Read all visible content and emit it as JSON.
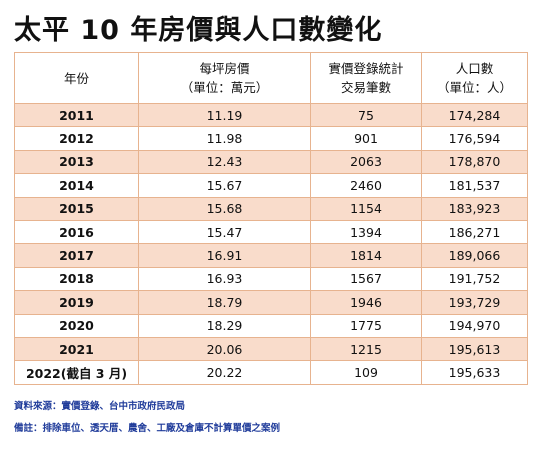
{
  "title": "太平 10 年房價與人口數變化",
  "headers": {
    "year": "年份",
    "price_line1": "每坪房價",
    "price_line2": "（單位：萬元）",
    "tx_line1": "實價登錄統計",
    "tx_line2": "交易筆數",
    "pop_line1": "人口數",
    "pop_line2": "（單位：人）"
  },
  "rows": [
    {
      "year": "2011",
      "price": "11.19",
      "tx": "75",
      "pop": "174,284"
    },
    {
      "year": "2012",
      "price": "11.98",
      "tx": "901",
      "pop": "176,594"
    },
    {
      "year": "2013",
      "price": "12.43",
      "tx": "2063",
      "pop": "178,870"
    },
    {
      "year": "2014",
      "price": "15.67",
      "tx": "2460",
      "pop": "181,537"
    },
    {
      "year": "2015",
      "price": "15.68",
      "tx": "1154",
      "pop": "183,923"
    },
    {
      "year": "2016",
      "price": "15.47",
      "tx": "1394",
      "pop": "186,271"
    },
    {
      "year": "2017",
      "price": "16.91",
      "tx": "1814",
      "pop": "189,066"
    },
    {
      "year": "2018",
      "price": "16.93",
      "tx": "1567",
      "pop": "191,752"
    },
    {
      "year": "2019",
      "price": "18.79",
      "tx": "1946",
      "pop": "193,729"
    },
    {
      "year": "2020",
      "price": "18.29",
      "tx": "1775",
      "pop": "194,970"
    },
    {
      "year": "2021",
      "price": "20.06",
      "tx": "1215",
      "pop": "195,613"
    },
    {
      "year": "2022(截自 3 月)",
      "price": "20.22",
      "tx": "109",
      "pop": "195,633"
    }
  ],
  "notes": {
    "source": "資料來源：實價登錄、台中市政府民政局",
    "remark": "備註：排除車位、透天厝、農舍、工廠及倉庫不計算單價之案例"
  },
  "colors": {
    "border": "#e7b38f",
    "row_shade": "#f9dccb",
    "note_text": "#1f3b9a"
  }
}
